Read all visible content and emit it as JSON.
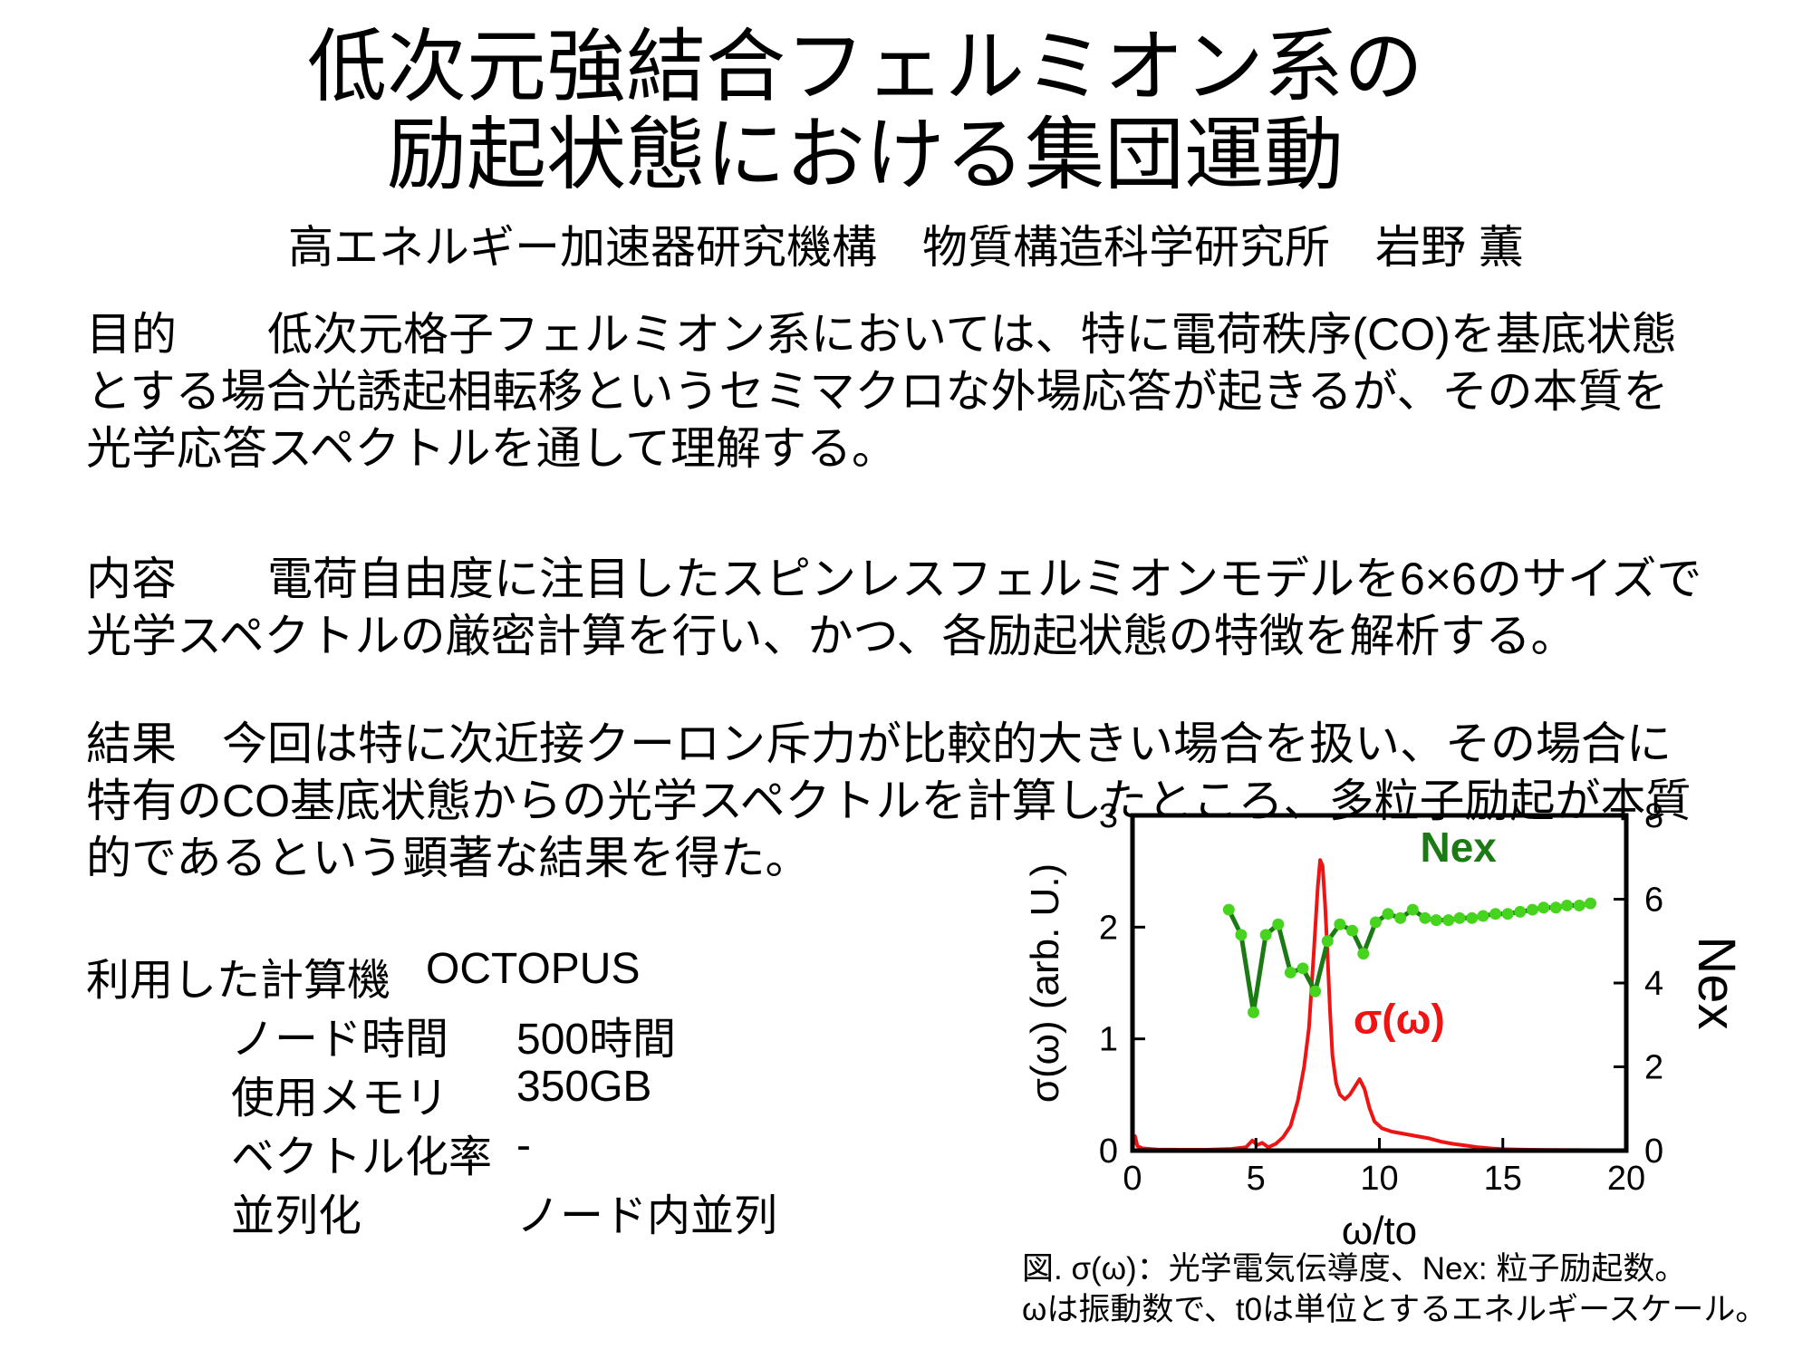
{
  "title": {
    "line1": "低次元強結合フェルミオン系の",
    "line2": "励起状態における集団運動"
  },
  "affiliation": "高エネルギー加速器研究機構　物質構造科学研究所　岩野 薫",
  "paragraphs": {
    "purpose": [
      "目的　　低次元格子フェルミオン系においては、特に電荷秩序(CO)を基底状態",
      "とする場合光誘起相転移というセミマクロな外場応答が起きるが、その本質を",
      "光学応答スペクトルを通して理解する。"
    ],
    "content": [
      "内容　　電荷自由度に注目したスピンレスフェルミオンモデルを6×6のサイズで",
      "光学スペクトルの厳密計算を行い、かつ、各励起状態の特徴を解析する。"
    ],
    "result": [
      "結果　今回は特に次近接クーロン斥力が比較的大きい場合を扱い、その場合に",
      "特有のCO基底状態からの光学スペクトルを計算したところ、多粒子励起が本質",
      "的であるという顕著な結果を得た。"
    ]
  },
  "specs": {
    "heading": {
      "label": "利用した計算機",
      "value": "OCTOPUS"
    },
    "rows": [
      {
        "label": "ノード時間",
        "value": "500時間"
      },
      {
        "label": "使用メモリ",
        "value": "350GB"
      },
      {
        "label": "ベクトル化率",
        "value": "-"
      },
      {
        "label": "並列化",
        "value": "ノード内並列"
      }
    ]
  },
  "figure": {
    "caption": [
      "図. σ(ω)：光学電気伝導度、Nex: 粒子励起数。",
      "ωは振動数で、t0は単位とするエネルギースケール。"
    ]
  },
  "chart_data": {
    "type": "line",
    "xlabel": "ω/to",
    "ylabel_left": "σ(ω) (arb. U.)",
    "ylabel_right": "Nex",
    "xlim": [
      0,
      20
    ],
    "xticks": [
      0,
      5,
      10,
      15,
      20
    ],
    "ylim_left": [
      0,
      3
    ],
    "yticks_left": [
      0,
      1,
      2,
      3
    ],
    "ylim_right": [
      0,
      8
    ],
    "yticks_right": [
      0,
      2,
      4,
      6,
      8
    ],
    "grid": false,
    "frame_color": "#000000",
    "series": [
      {
        "name": "σ(ω)",
        "axis": "left",
        "color": "#ee1414",
        "line_width": 4,
        "markers": false,
        "points": [
          [
            0,
            0.02
          ],
          [
            0.1,
            0.13
          ],
          [
            0.2,
            0.04
          ],
          [
            0.4,
            0.02
          ],
          [
            1,
            0.01
          ],
          [
            2,
            0.008
          ],
          [
            3,
            0.008
          ],
          [
            4,
            0.015
          ],
          [
            4.6,
            0.03
          ],
          [
            4.85,
            0.09
          ],
          [
            5.05,
            0.05
          ],
          [
            5.25,
            0.07
          ],
          [
            5.5,
            0.03
          ],
          [
            5.8,
            0.06
          ],
          [
            6.1,
            0.12
          ],
          [
            6.4,
            0.22
          ],
          [
            6.7,
            0.45
          ],
          [
            6.95,
            0.75
          ],
          [
            7.15,
            1.1
          ],
          [
            7.35,
            1.8
          ],
          [
            7.5,
            2.35
          ],
          [
            7.6,
            2.6
          ],
          [
            7.7,
            2.55
          ],
          [
            7.8,
            2.2
          ],
          [
            7.9,
            1.75
          ],
          [
            8.0,
            1.25
          ],
          [
            8.1,
            0.85
          ],
          [
            8.25,
            0.6
          ],
          [
            8.4,
            0.5
          ],
          [
            8.6,
            0.46
          ],
          [
            8.8,
            0.5
          ],
          [
            9.0,
            0.57
          ],
          [
            9.2,
            0.64
          ],
          [
            9.4,
            0.55
          ],
          [
            9.6,
            0.38
          ],
          [
            9.8,
            0.26
          ],
          [
            10.1,
            0.2
          ],
          [
            10.5,
            0.17
          ],
          [
            11,
            0.15
          ],
          [
            11.5,
            0.13
          ],
          [
            12,
            0.11
          ],
          [
            12.5,
            0.08
          ],
          [
            13,
            0.06
          ],
          [
            13.5,
            0.045
          ],
          [
            14,
            0.03
          ],
          [
            14.5,
            0.02
          ],
          [
            15,
            0.013
          ],
          [
            16,
            0.008
          ],
          [
            17,
            0.006
          ],
          [
            18,
            0.005
          ],
          [
            19,
            0.004
          ],
          [
            20,
            0.003
          ]
        ]
      },
      {
        "name": "Nex",
        "axis": "right",
        "color": "#1b7a14",
        "marker_color": "#46d41e",
        "line_width": 5,
        "markers": true,
        "marker_radius": 6.5,
        "points": [
          [
            3.9,
            5.75
          ],
          [
            4.4,
            5.15
          ],
          [
            4.9,
            3.3
          ],
          [
            5.4,
            5.15
          ],
          [
            5.9,
            5.4
          ],
          [
            6.4,
            4.25
          ],
          [
            6.9,
            4.35
          ],
          [
            7.4,
            3.8
          ],
          [
            7.9,
            5.0
          ],
          [
            8.4,
            5.4
          ],
          [
            8.9,
            5.25
          ],
          [
            9.35,
            4.7
          ],
          [
            9.85,
            5.45
          ],
          [
            10.35,
            5.65
          ],
          [
            10.85,
            5.55
          ],
          [
            11.35,
            5.75
          ],
          [
            11.85,
            5.55
          ],
          [
            12.3,
            5.5
          ],
          [
            12.8,
            5.5
          ],
          [
            13.25,
            5.55
          ],
          [
            13.75,
            5.55
          ],
          [
            14.2,
            5.6
          ],
          [
            14.7,
            5.65
          ],
          [
            15.2,
            5.65
          ],
          [
            15.7,
            5.7
          ],
          [
            16.2,
            5.75
          ],
          [
            16.65,
            5.8
          ],
          [
            17.15,
            5.8
          ],
          [
            17.6,
            5.85
          ],
          [
            18.1,
            5.85
          ],
          [
            18.55,
            5.9
          ]
        ]
      }
    ],
    "annotations": [
      {
        "text": "Nex",
        "x": 13.2,
        "y": 6.9,
        "axis": "right",
        "color": "#1b7a14",
        "size": 46
      },
      {
        "text": "σ(ω)",
        "x": 10.8,
        "y": 1.05,
        "axis": "left",
        "color": "#ee1414",
        "size": 46
      }
    ]
  }
}
